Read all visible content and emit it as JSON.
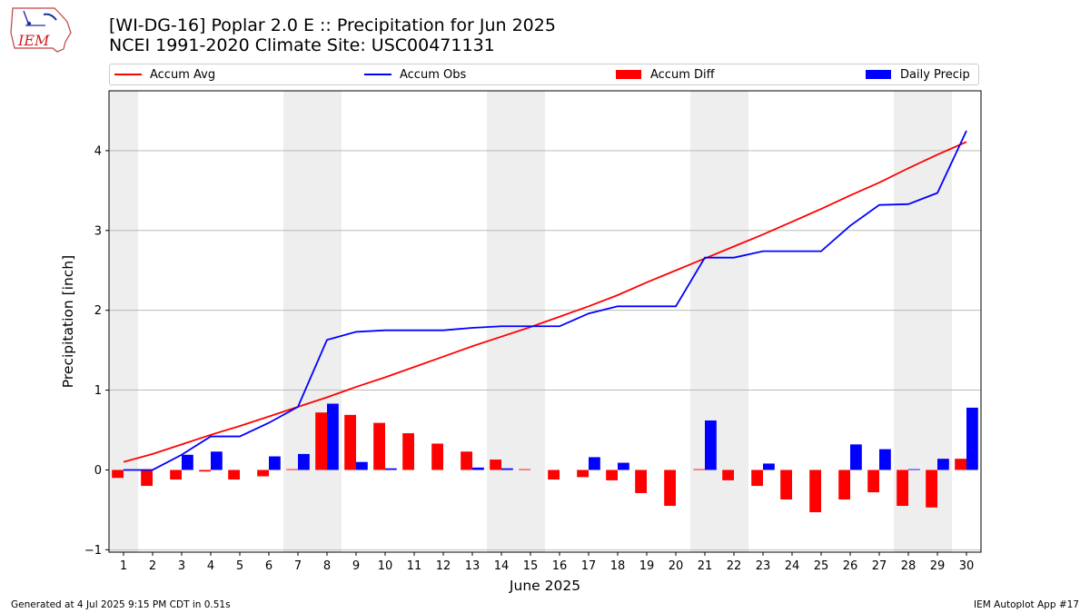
{
  "header": {
    "logo_text": "IEM",
    "title_line1": "[WI-DG-16] Poplar 2.0 E :: Precipitation for Jun 2025",
    "title_line2": "NCEI 1991-2020 Climate Site: USC00471131"
  },
  "footer": {
    "left": "Generated at 4 Jul 2025 9:15 PM CDT in 0.51s",
    "right": "IEM Autoplot App #17"
  },
  "colors": {
    "accum_avg": "#ff0000",
    "accum_obs": "#0000ff",
    "accum_diff": "#ff0000",
    "daily_precip": "#0000ff",
    "weekend_shade": "#eeeeee",
    "grid": "#b0b0b0"
  },
  "chart_data": {
    "type": "bar",
    "xlabel": "June 2025",
    "ylabel": "Precipitation [inch]",
    "xlim": [
      0.5,
      30.5
    ],
    "ylim": [
      -1.03,
      4.75
    ],
    "yticks": [
      -1,
      0,
      1,
      2,
      3,
      4
    ],
    "grid": "horizontal",
    "legend_placement": "top",
    "x": [
      1,
      2,
      3,
      4,
      5,
      6,
      7,
      8,
      9,
      10,
      11,
      12,
      13,
      14,
      15,
      16,
      17,
      18,
      19,
      20,
      21,
      22,
      23,
      24,
      25,
      26,
      27,
      28,
      29,
      30
    ],
    "weekend_days": [
      1,
      7,
      8,
      14,
      15,
      21,
      22,
      28,
      29
    ],
    "series": [
      {
        "name": "Accum Avg",
        "type": "line",
        "values": [
          0.1,
          0.2,
          0.32,
          0.44,
          0.55,
          0.67,
          0.79,
          0.91,
          1.04,
          1.16,
          1.29,
          1.42,
          1.55,
          1.67,
          1.79,
          1.92,
          2.05,
          2.19,
          2.35,
          2.5,
          2.65,
          2.8,
          2.95,
          3.11,
          3.27,
          3.44,
          3.6,
          3.78,
          3.95,
          4.11
        ]
      },
      {
        "name": "Accum Obs",
        "type": "line",
        "values": [
          0.0,
          0.0,
          0.19,
          0.42,
          0.42,
          0.59,
          0.79,
          1.63,
          1.73,
          1.75,
          1.75,
          1.75,
          1.78,
          1.8,
          1.8,
          1.8,
          1.96,
          2.05,
          2.05,
          2.05,
          2.66,
          2.66,
          2.74,
          2.74,
          2.74,
          3.06,
          3.32,
          3.33,
          3.47,
          4.25
        ]
      },
      {
        "name": "Accum Diff",
        "type": "bar",
        "values": [
          -0.1,
          -0.2,
          -0.12,
          -0.02,
          -0.12,
          -0.08,
          0.01,
          0.72,
          0.69,
          0.59,
          0.46,
          0.33,
          0.23,
          0.13,
          0.01,
          -0.12,
          -0.09,
          -0.13,
          -0.29,
          -0.45,
          0.01,
          -0.13,
          -0.2,
          -0.37,
          -0.53,
          -0.37,
          -0.28,
          -0.45,
          -0.47,
          0.14
        ]
      },
      {
        "name": "Daily Precip",
        "type": "bar",
        "values": [
          0.0,
          0.0,
          0.19,
          0.23,
          0.0,
          0.17,
          0.2,
          0.83,
          0.1,
          0.02,
          0.0,
          0.0,
          0.03,
          0.02,
          0.0,
          0.0,
          0.16,
          0.09,
          0.0,
          0.0,
          0.62,
          0.0,
          0.08,
          0.0,
          0.0,
          0.32,
          0.26,
          0.01,
          0.14,
          0.78
        ]
      }
    ]
  }
}
